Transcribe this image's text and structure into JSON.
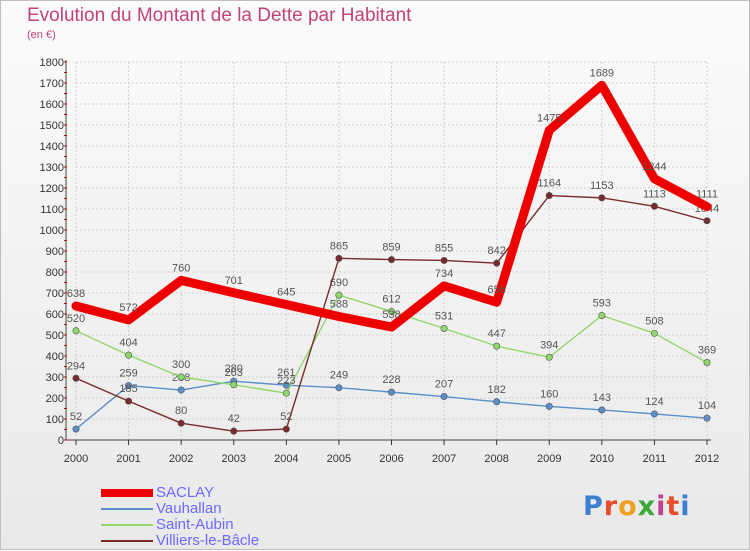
{
  "chart": {
    "title": "Evolution du Montant de la Dette par Habitant",
    "subtitle": "(en €)"
  },
  "chart_data": {
    "type": "line",
    "title": "Evolution du Montant de la Dette par Habitant",
    "subtitle": "(en €)",
    "x": [
      "2000",
      "2001",
      "2002",
      "2003",
      "2004",
      "2005",
      "2006",
      "2007",
      "2008",
      "2009",
      "2010",
      "2011",
      "2012"
    ],
    "ylim": [
      0,
      1800
    ],
    "yticks": [
      0,
      100,
      200,
      300,
      400,
      500,
      600,
      700,
      800,
      900,
      1000,
      1100,
      1200,
      1300,
      1400,
      1500,
      1600,
      1700,
      1800
    ],
    "grid": true,
    "legend_position": "bottom-left",
    "series": [
      {
        "name": "SACLAY",
        "color": "#ee0000",
        "values": [
          638,
          572,
          760,
          701,
          645,
          588,
          538,
          734,
          656,
          1475,
          1689,
          1244,
          1111
        ]
      },
      {
        "name": "Vauhallan",
        "color": "#5b8fc9",
        "values": [
          52,
          259,
          238,
          280,
          261,
          249,
          228,
          207,
          182,
          160,
          143,
          124,
          104
        ]
      },
      {
        "name": "Saint-Aubin",
        "color": "#8fd86a",
        "values": [
          520,
          404,
          300,
          263,
          223,
          690,
          612,
          531,
          447,
          394,
          593,
          508,
          369
        ]
      },
      {
        "name": "Villiers-le-Bâcle",
        "color": "#7a2a2a",
        "values": [
          294,
          185,
          80,
          42,
          52,
          865,
          859,
          855,
          842,
          1164,
          1153,
          1113,
          1044
        ]
      }
    ]
  },
  "logo": {
    "letters": [
      {
        "ch": "P",
        "color": "#3a7fd0"
      },
      {
        "ch": "r",
        "color": "#e84d2b"
      },
      {
        "ch": "o",
        "color": "#f0a020"
      },
      {
        "ch": "x",
        "color": "#3aa83a"
      },
      {
        "ch": "i",
        "color": "#c04090"
      },
      {
        "ch": "t",
        "color": "#e84d2b"
      },
      {
        "ch": "i",
        "color": "#3a7fd0"
      }
    ]
  }
}
